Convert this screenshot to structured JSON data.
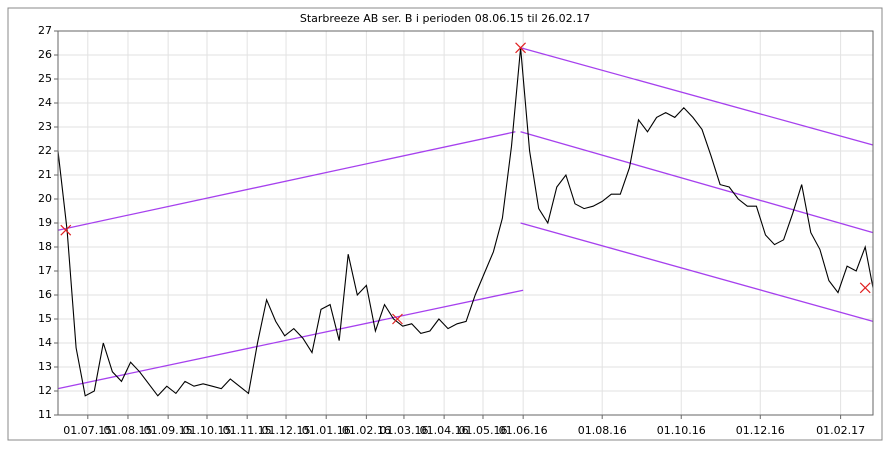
{
  "chart_data": {
    "type": "line",
    "title": "Starbreeze AB ser. B i perioden 08.06.15 til 26.02.17",
    "xlim": [
      "08.06.15",
      "26.02.17"
    ],
    "xticks": [
      "01.07.15",
      "01.08.15",
      "01.09.15",
      "01.10.15",
      "01.11.15",
      "01.12.15",
      "01.01.16",
      "01.02.16",
      "01.03.16",
      "01.04.16",
      "01.05.16",
      "01.06.16",
      "01.08.16",
      "01.10.16",
      "01.12.16",
      "01.02.17"
    ],
    "ylim": [
      11,
      27
    ],
    "yticks": [
      11,
      12,
      13,
      14,
      15,
      16,
      17,
      18,
      19,
      20,
      21,
      22,
      23,
      24,
      25,
      26,
      27
    ],
    "grid": true,
    "x": [
      "08.06.15",
      "15.06.15",
      "22.06.15",
      "29.06.15",
      "06.07.15",
      "13.07.15",
      "20.07.15",
      "27.07.15",
      "03.08.15",
      "10.08.15",
      "17.08.15",
      "24.08.15",
      "31.08.15",
      "07.09.15",
      "14.09.15",
      "21.09.15",
      "28.09.15",
      "05.10.15",
      "12.10.15",
      "19.10.15",
      "26.10.15",
      "02.11.15",
      "09.11.15",
      "16.11.15",
      "23.11.15",
      "30.11.15",
      "07.12.15",
      "14.12.15",
      "21.12.15",
      "28.12.15",
      "04.01.16",
      "11.01.16",
      "18.01.16",
      "25.01.16",
      "01.02.16",
      "08.02.16",
      "15.02.16",
      "22.02.16",
      "29.02.16",
      "07.03.16",
      "14.03.16",
      "21.03.16",
      "28.03.16",
      "04.04.16",
      "11.04.16",
      "18.04.16",
      "25.04.16",
      "02.05.16",
      "09.05.16",
      "16.05.16",
      "23.05.16",
      "30.05.16",
      "06.06.16",
      "13.06.16",
      "20.06.16",
      "27.06.16",
      "04.07.16",
      "11.07.16",
      "18.07.16",
      "25.07.16",
      "01.08.16",
      "08.08.16",
      "15.08.16",
      "22.08.16",
      "29.08.16",
      "05.09.16",
      "12.09.16",
      "19.09.16",
      "26.09.16",
      "03.10.16",
      "10.10.16",
      "17.10.16",
      "24.10.16",
      "31.10.16",
      "07.11.16",
      "14.11.16",
      "21.11.16",
      "28.11.16",
      "05.12.16",
      "12.12.16",
      "19.12.16",
      "26.12.16",
      "02.01.17",
      "09.01.17",
      "16.01.17",
      "23.01.17",
      "30.01.17",
      "06.02.17",
      "13.02.17",
      "20.02.17",
      "26.02.17"
    ],
    "series": [
      {
        "color": "#000000",
        "values": [
          22.0,
          18.7,
          13.8,
          11.8,
          12.0,
          14.0,
          12.8,
          12.4,
          13.2,
          12.8,
          12.3,
          11.8,
          12.2,
          11.9,
          12.4,
          12.2,
          12.3,
          12.2,
          12.1,
          12.5,
          12.2,
          11.9,
          14.0,
          15.8,
          14.9,
          14.3,
          14.6,
          14.2,
          13.6,
          15.4,
          15.6,
          14.1,
          17.7,
          16.0,
          16.4,
          14.5,
          15.6,
          15.0,
          14.7,
          14.8,
          14.4,
          14.5,
          15.0,
          14.6,
          14.8,
          14.9,
          16.0,
          16.9,
          17.8,
          19.2,
          22.2,
          26.3,
          22.0,
          19.6,
          19.0,
          20.5,
          21.0,
          19.8,
          19.6,
          19.7,
          19.9,
          20.2,
          20.2,
          21.3,
          23.3,
          22.8,
          23.4,
          23.6,
          23.4,
          23.8,
          23.4,
          22.9,
          21.8,
          20.6,
          20.5,
          20.0,
          19.7,
          19.7,
          18.5,
          18.1,
          18.3,
          19.4,
          20.6,
          18.6,
          17.9,
          16.6,
          16.1,
          17.2,
          17.0,
          18.0,
          16.3
        ]
      }
    ],
    "trend_color": "#a640ee",
    "trend_lines": [
      {
        "x": [
          "08.06.15",
          "26.05.16"
        ],
        "values": [
          18.7,
          22.8
        ]
      },
      {
        "x": [
          "08.06.15",
          "01.06.16"
        ],
        "values": [
          12.1,
          16.2
        ]
      },
      {
        "x": [
          "30.05.16",
          "26.02.17"
        ],
        "values": [
          26.3,
          22.25
        ]
      },
      {
        "x": [
          "30.05.16",
          "26.02.17"
        ],
        "values": [
          22.8,
          18.6
        ]
      },
      {
        "x": [
          "30.05.16",
          "26.02.17"
        ],
        "values": [
          19.0,
          14.9
        ]
      }
    ],
    "marker_color": "#e02020",
    "markers": {
      "x": [
        "14.06.15",
        "25.02.16",
        "30.05.16",
        "20.02.17"
      ],
      "values": [
        18.7,
        15.0,
        26.3,
        16.3
      ]
    }
  }
}
